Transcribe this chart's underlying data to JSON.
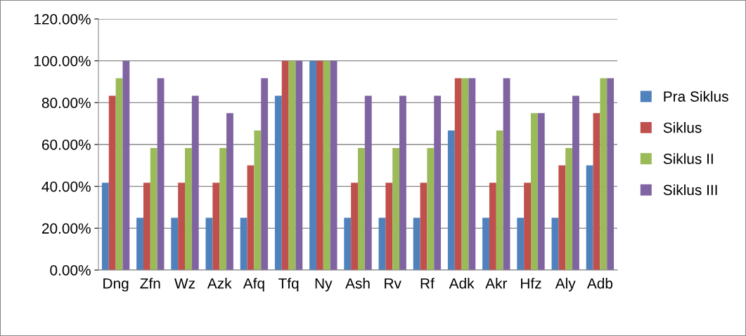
{
  "chart_data": {
    "type": "bar",
    "categories": [
      "Dng",
      "Zfn",
      "Wz",
      "Azk",
      "Afq",
      "Tfq",
      "Ny",
      "Ash",
      "Rv",
      "Rf",
      "Adk",
      "Akr",
      "Hfz",
      "Aly",
      "Adb"
    ],
    "series": [
      {
        "name": "Pra Siklus",
        "color": "#4f81bd",
        "values": [
          41.7,
          25,
          25,
          25,
          25,
          83.3,
          100,
          25,
          25,
          25,
          66.7,
          25,
          25,
          25,
          50
        ]
      },
      {
        "name": "Siklus",
        "color": "#c0504d",
        "values": [
          83.3,
          41.7,
          41.7,
          41.7,
          50,
          100,
          100,
          41.7,
          41.7,
          41.7,
          91.7,
          41.7,
          41.7,
          50,
          75
        ]
      },
      {
        "name": "Siklus II",
        "color": "#9bbb59",
        "values": [
          91.7,
          58.3,
          58.3,
          58.3,
          66.7,
          100,
          100,
          58.3,
          58.3,
          58.3,
          91.7,
          66.7,
          75,
          58.3,
          91.7
        ]
      },
      {
        "name": "Siklus III",
        "color": "#8064a2",
        "values": [
          100,
          91.7,
          83.3,
          75,
          91.7,
          100,
          100,
          83.3,
          83.3,
          83.3,
          91.7,
          91.7,
          75,
          83.3,
          91.7
        ]
      }
    ],
    "ylim": [
      0,
      120
    ],
    "yticks": [
      {
        "value": 0,
        "label": "0.00%"
      },
      {
        "value": 20,
        "label": "20.00%"
      },
      {
        "value": 40,
        "label": "40.00%"
      },
      {
        "value": 60,
        "label": "60.00%"
      },
      {
        "value": 80,
        "label": "80.00%"
      },
      {
        "value": 100,
        "label": "100.00%"
      },
      {
        "value": 120,
        "label": "120.00%"
      }
    ],
    "grid": "y",
    "legend": "right"
  }
}
